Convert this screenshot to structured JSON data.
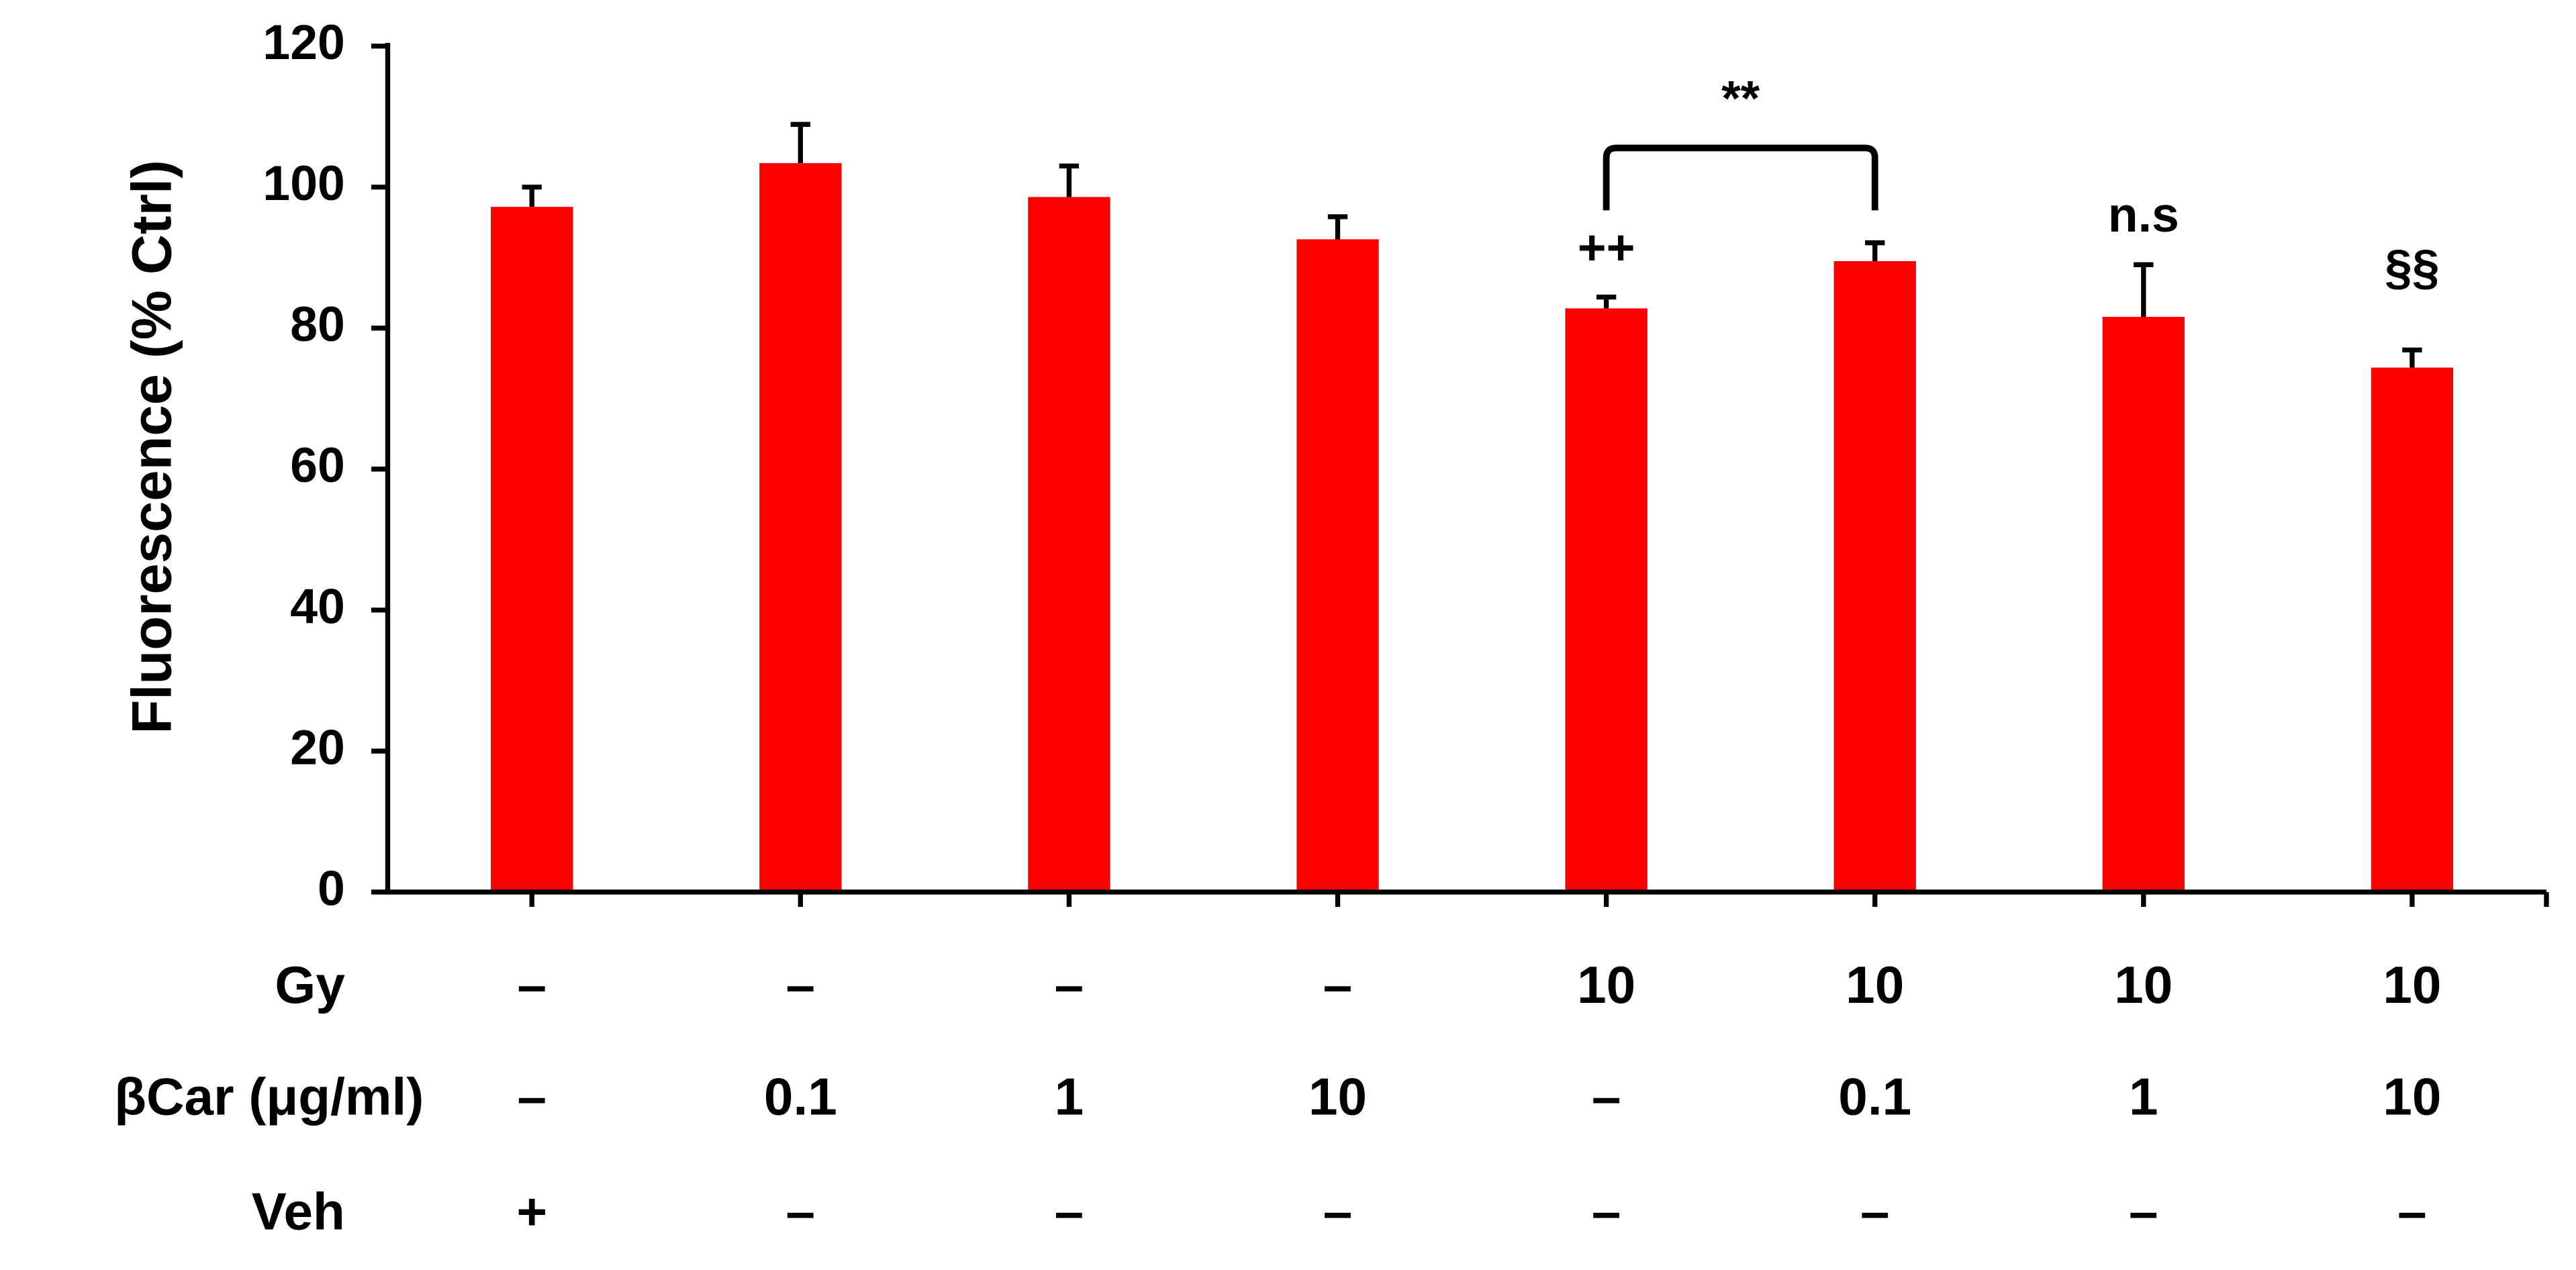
{
  "chart_data": {
    "type": "bar",
    "y_label": "Fluorescence  (% Ctrl)",
    "categories": [
      null,
      null,
      null,
      null,
      null,
      null,
      null,
      null
    ],
    "values": [
      97.2,
      103.4,
      98.6,
      92.6,
      82.8,
      89.5,
      81.6,
      74.4
    ],
    "errors": [
      2.8,
      5.5,
      4.4,
      3.2,
      1.6,
      2.6,
      7.4,
      2.5
    ],
    "color": "#ff0000",
    "ylim": [
      0,
      120
    ],
    "yticks": [
      0,
      20,
      40,
      60,
      80,
      100,
      120
    ],
    "annotations": [
      "++",
      "**",
      "n.s",
      "§§"
    ],
    "table_rows": [
      {
        "label": "Gy",
        "cells": [
          "–",
          "–",
          "–",
          "–",
          "10",
          "10",
          "10",
          "10"
        ]
      },
      {
        "label": "βCar (μg/ml)",
        "cells": [
          "–",
          "0.1",
          "1",
          "10",
          "–",
          "0.1",
          "1",
          "10"
        ]
      },
      {
        "label": "Veh",
        "cells": [
          "+",
          "–",
          "–",
          "–",
          "–",
          "–",
          "–",
          "–"
        ]
      }
    ]
  }
}
